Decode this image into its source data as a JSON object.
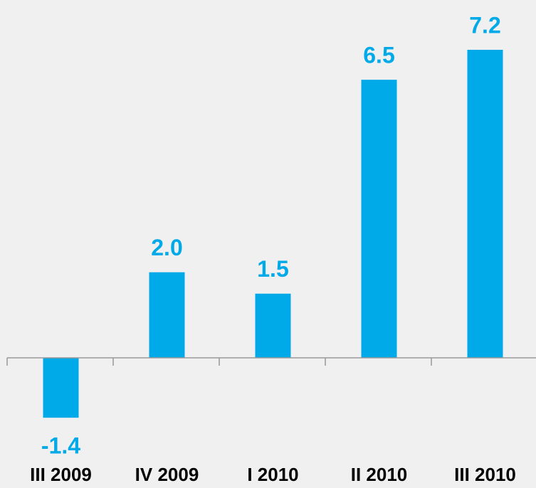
{
  "chart_data": {
    "type": "bar",
    "categories": [
      "III 2009",
      "IV 2009",
      "I 2010",
      "II 2010",
      "III 2010"
    ],
    "values": [
      -1.4,
      2.0,
      1.5,
      6.5,
      7.2
    ],
    "value_labels": [
      "-1.4",
      "2.0",
      "1.5",
      "6.5",
      "7.2"
    ],
    "color": "#00a9e8"
  }
}
